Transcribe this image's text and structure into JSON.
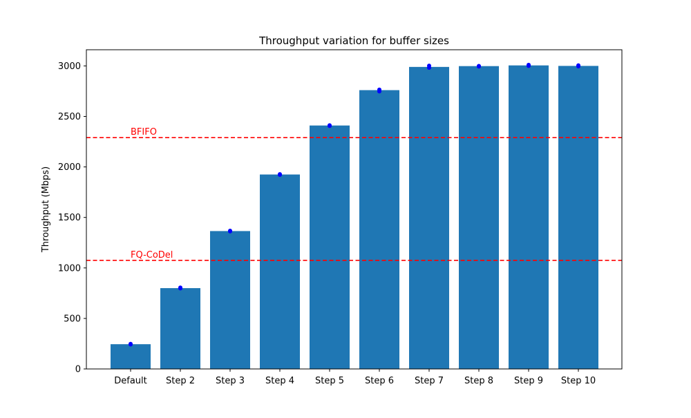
{
  "chart_data": {
    "type": "bar",
    "title": "Throughput variation for buffer sizes",
    "xlabel": "",
    "ylabel": "Throughput (Mbps)",
    "categories": [
      "Default",
      "Step 2",
      "Step 3",
      "Step 4",
      "Step 5",
      "Step 6",
      "Step 7",
      "Step 8",
      "Step 9",
      "Step 10"
    ],
    "values": [
      245,
      800,
      1365,
      1925,
      2410,
      2760,
      2990,
      2998,
      3005,
      3000
    ],
    "points": [
      [
        248,
        243
      ],
      [
        805,
        798
      ],
      [
        1368,
        1362
      ],
      [
        1928,
        1922
      ],
      [
        2412,
        2406
      ],
      [
        2765,
        2748
      ],
      [
        3002,
        2982
      ],
      [
        2999,
        2994
      ],
      [
        3010,
        3000
      ],
      [
        3005,
        2996
      ]
    ],
    "reference_lines": [
      {
        "label": "BFIFO",
        "value": 2290,
        "color": "#ff0000"
      },
      {
        "label": "FQ-CoDel",
        "value": 1075,
        "color": "#ff0000"
      }
    ],
    "ylim": [
      0,
      3160
    ],
    "yticks": [
      0,
      500,
      1000,
      1500,
      2000,
      2500,
      3000
    ],
    "bar_color": "#1f77b4",
    "point_color": "#0000ff",
    "grid": false
  }
}
